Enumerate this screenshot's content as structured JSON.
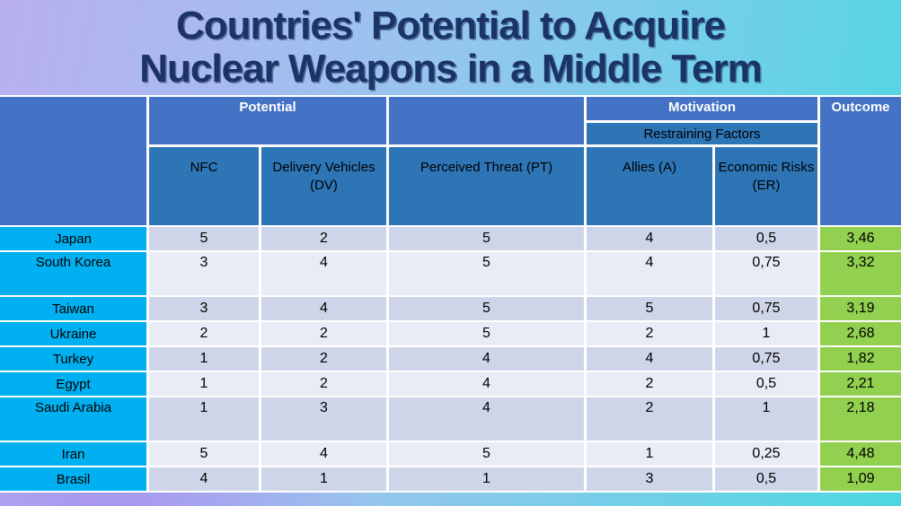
{
  "title": {
    "line1": "Countries' Potential to Acquire",
    "line2": "Nuclear Weapons in a Middle Term"
  },
  "table": {
    "header": {
      "potential": "Potential",
      "motivation": "Motivation",
      "restraining_factors": "Restraining Factors",
      "outcome": "Outcome",
      "columns": {
        "nfc": "NFC",
        "dv": "Delivery Vehicles (DV)",
        "pt": "Perceived Threat (PT)",
        "allies": "Allies (A)",
        "er": "Economic Risks (ER)"
      }
    },
    "rows": [
      {
        "country": "Japan",
        "nfc": "5",
        "dv": "2",
        "pt": "5",
        "allies": "4",
        "er": "0,5",
        "outcome": "3,46",
        "tall": false
      },
      {
        "country": "South Korea",
        "nfc": "3",
        "dv": "4",
        "pt": "5",
        "allies": "4",
        "er": "0,75",
        "outcome": "3,32",
        "tall": true
      },
      {
        "country": "Taiwan",
        "nfc": "3",
        "dv": "4",
        "pt": "5",
        "allies": "5",
        "er": "0,75",
        "outcome": "3,19",
        "tall": false
      },
      {
        "country": "Ukraine",
        "nfc": "2",
        "dv": "2",
        "pt": "5",
        "allies": "2",
        "er": "1",
        "outcome": "2,68",
        "tall": false
      },
      {
        "country": "Turkey",
        "nfc": "1",
        "dv": "2",
        "pt": "4",
        "allies": "4",
        "er": "0,75",
        "outcome": "1,82",
        "tall": false
      },
      {
        "country": "Egypt",
        "nfc": "1",
        "dv": "2",
        "pt": "4",
        "allies": "2",
        "er": "0,5",
        "outcome": "2,21",
        "tall": false
      },
      {
        "country": "Saudi Arabia",
        "nfc": "1",
        "dv": "3",
        "pt": "4",
        "allies": "2",
        "er": "1",
        "outcome": "2,18",
        "tall": true
      },
      {
        "country": "Iran",
        "nfc": "5",
        "dv": "4",
        "pt": "5",
        "allies": "1",
        "er": "0,25",
        "outcome": "4,48",
        "tall": false
      },
      {
        "country": "Brasil",
        "nfc": "4",
        "dv": "1",
        "pt": "1",
        "allies": "3",
        "er": "0,5",
        "outcome": "1,09",
        "tall": false
      }
    ]
  },
  "colors": {
    "header_blue": "#4472c4",
    "subheader_blue": "#2e75b6",
    "country_cyan": "#00b0f0",
    "outcome_green": "#92d050",
    "row_dark": "#cfd5e8",
    "row_light": "#e9ecf6",
    "title_navy": "#1b3468",
    "background_left": "#b9b0f0",
    "background_right": "#4cd7e0"
  }
}
